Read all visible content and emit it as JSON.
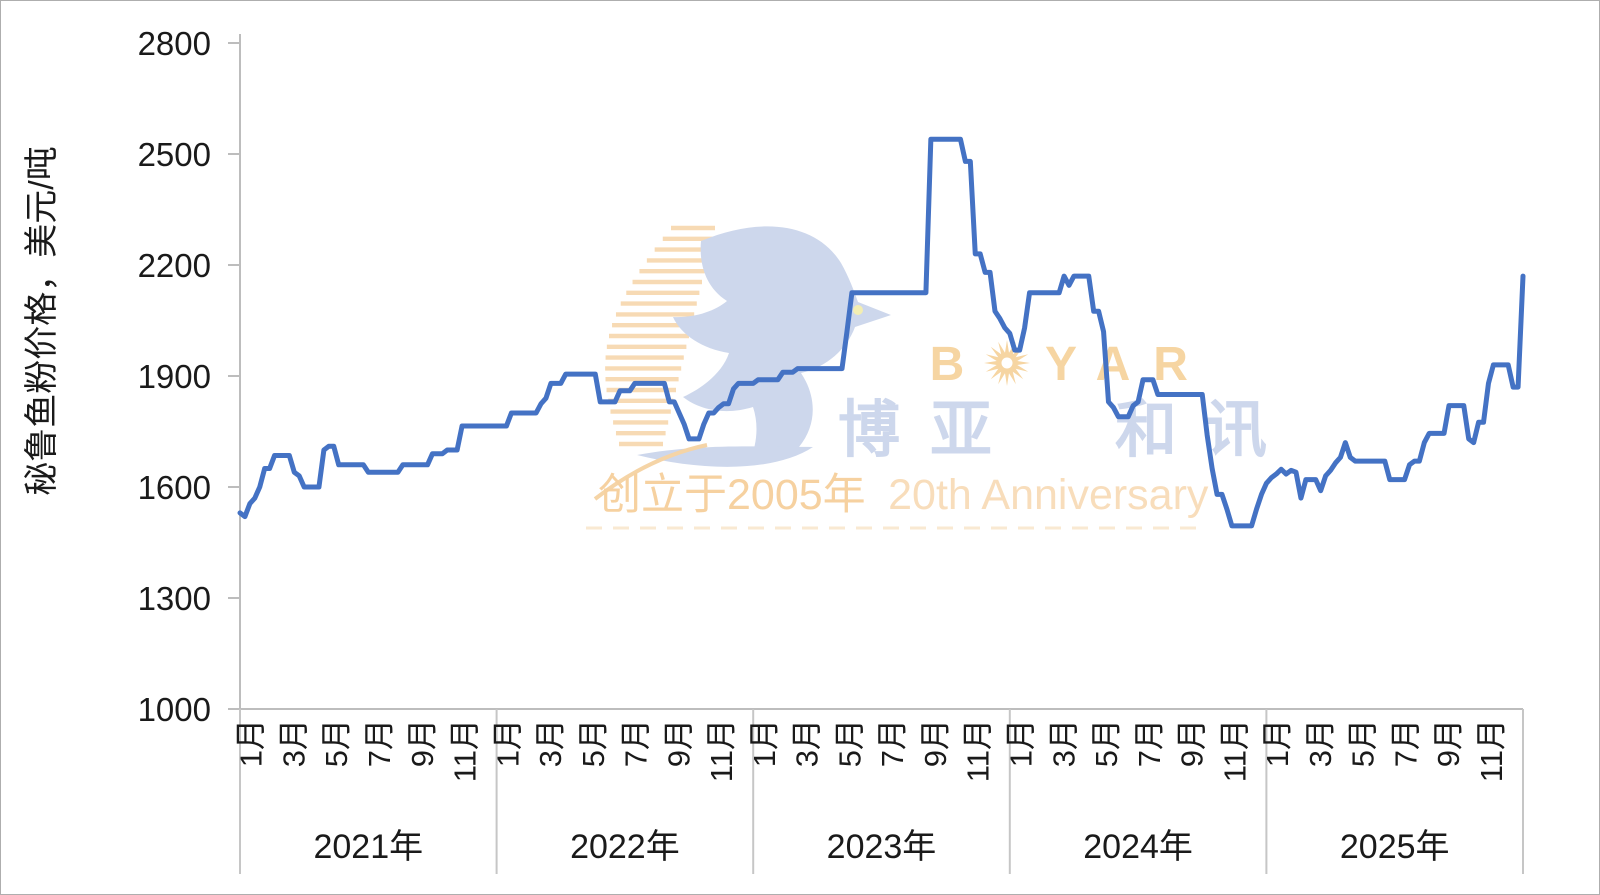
{
  "y_axis": {
    "title": "秘鲁鱼粉价格，美元/吨",
    "tick_labels": [
      "1000",
      "1300",
      "1600",
      "1900",
      "2200",
      "2500",
      "2800"
    ]
  },
  "x_axis": {
    "month_labels": [
      "1月",
      "3月",
      "5月",
      "7月",
      "9月",
      "11月"
    ],
    "year_labels": [
      "2021年",
      "2022年",
      "2023年",
      "2024年",
      "2025年"
    ]
  },
  "watermark": {
    "brand_en": "BOYAR",
    "brand_en_left": "B",
    "brand_en_right": "YAR",
    "brand_cn": "博亚和讯",
    "brand_cn_left": "博亚",
    "brand_cn_right": "和讯",
    "tagline_cn": "创立于2005年",
    "tagline_en": "20th Anniversary",
    "colors": {
      "bird": "#cdd7ec",
      "stripes": "#f7d9b0",
      "brand_en": "#f6d5a2",
      "brand_cn": "#cdd7ec",
      "tagline_cn": "#f6d1a0",
      "tagline_en": "#f8ddbb"
    }
  },
  "chart_data": {
    "type": "line",
    "title": "",
    "xlabel": "",
    "ylabel": "秘鲁鱼粉价格，美元/吨",
    "ylim": [
      1000,
      2800
    ],
    "yticks": [
      1000,
      1300,
      1600,
      1900,
      2200,
      2500,
      2800
    ],
    "grid": false,
    "legend": false,
    "x_unit": "week",
    "years": [
      "2021",
      "2022",
      "2023",
      "2024",
      "2025"
    ],
    "month_tick_labels": [
      "1月",
      "3月",
      "5月",
      "7月",
      "9月",
      "11月"
    ],
    "series": [
      {
        "name": "秘鲁鱼粉价格",
        "color": "#4472c4",
        "values_by_year": {
          "2021": [
            1530,
            1520,
            1555,
            1570,
            1600,
            1650,
            1650,
            1685,
            1685,
            1685,
            1685,
            1640,
            1630,
            1600,
            1600,
            1600,
            1600,
            1700,
            1710,
            1710,
            1660,
            1660,
            1660,
            1660,
            1660,
            1660,
            1640,
            1640,
            1640,
            1640,
            1640,
            1640,
            1640,
            1660,
            1660,
            1660,
            1660,
            1660,
            1660,
            1690,
            1690,
            1690,
            1700,
            1700,
            1700,
            1765,
            1765,
            1765,
            1765,
            1765,
            1765,
            1765
          ],
          "2022": [
            1765,
            1765,
            1765,
            1800,
            1800,
            1800,
            1800,
            1800,
            1800,
            1825,
            1840,
            1880,
            1880,
            1880,
            1905,
            1905,
            1905,
            1905,
            1905,
            1905,
            1905,
            1830,
            1830,
            1830,
            1830,
            1860,
            1860,
            1860,
            1880,
            1880,
            1880,
            1880,
            1880,
            1880,
            1880,
            1830,
            1830,
            1800,
            1770,
            1730,
            1730,
            1730,
            1770,
            1800,
            1800,
            1815,
            1825,
            1825,
            1865,
            1880,
            1880,
            1880
          ],
          "2023": [
            1880,
            1890,
            1890,
            1890,
            1890,
            1890,
            1910,
            1910,
            1910,
            1920,
            1920,
            1920,
            1920,
            1920,
            1920,
            1920,
            1920,
            1920,
            1920,
            2020,
            2125,
            2125,
            2125,
            2125,
            2125,
            2125,
            2125,
            2125,
            2125,
            2125,
            2125,
            2125,
            2125,
            2125,
            2125,
            2125,
            2540,
            2540,
            2540,
            2540,
            2540,
            2540,
            2540,
            2480,
            2480,
            2230,
            2230,
            2180,
            2180,
            2075,
            2055,
            2030
          ],
          "2024": [
            2015,
            1970,
            1970,
            2030,
            2125,
            2125,
            2125,
            2125,
            2125,
            2125,
            2125,
            2170,
            2145,
            2170,
            2170,
            2170,
            2170,
            2075,
            2075,
            2020,
            1830,
            1815,
            1790,
            1790,
            1790,
            1820,
            1830,
            1890,
            1890,
            1890,
            1850,
            1850,
            1850,
            1850,
            1850,
            1850,
            1850,
            1850,
            1850,
            1850,
            1740,
            1650,
            1580,
            1580,
            1540,
            1495,
            1495,
            1495,
            1495,
            1495,
            1540,
            1580
          ],
          "2025": [
            1610,
            1625,
            1635,
            1648,
            1635,
            1645,
            1640,
            1570,
            1620,
            1620,
            1620,
            1590,
            1630,
            1645,
            1665,
            1680,
            1720,
            1680,
            1670,
            1670,
            1670,
            1670,
            1670,
            1670,
            1670,
            1620,
            1620,
            1620,
            1620,
            1660,
            1670,
            1670,
            1720,
            1745,
            1745,
            1745,
            1745,
            1820,
            1820,
            1820,
            1820,
            1730,
            1720,
            1775,
            1775,
            1880,
            1930,
            1930,
            1930,
            1930,
            1870,
            1870,
            2170
          ]
        }
      }
    ]
  }
}
